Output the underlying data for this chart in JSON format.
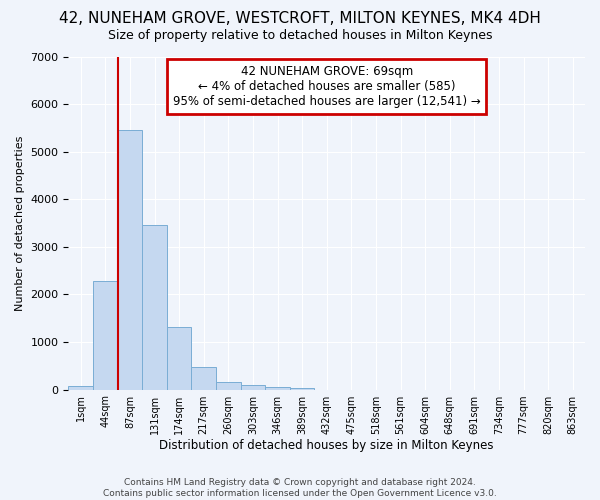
{
  "title": "42, NUNEHAM GROVE, WESTCROFT, MILTON KEYNES, MK4 4DH",
  "subtitle": "Size of property relative to detached houses in Milton Keynes",
  "xlabel": "Distribution of detached houses by size in Milton Keynes",
  "ylabel": "Number of detached properties",
  "footer_line1": "Contains HM Land Registry data © Crown copyright and database right 2024.",
  "footer_line2": "Contains public sector information licensed under the Open Government Licence v3.0.",
  "bar_labels": [
    "1sqm",
    "44sqm",
    "87sqm",
    "131sqm",
    "174sqm",
    "217sqm",
    "260sqm",
    "303sqm",
    "346sqm",
    "389sqm",
    "432sqm",
    "475sqm",
    "518sqm",
    "561sqm",
    "604sqm",
    "648sqm",
    "691sqm",
    "734sqm",
    "777sqm",
    "820sqm",
    "863sqm"
  ],
  "bar_values": [
    80,
    2280,
    5460,
    3450,
    1320,
    470,
    160,
    90,
    50,
    30,
    0,
    0,
    0,
    0,
    0,
    0,
    0,
    0,
    0,
    0,
    0
  ],
  "bar_color": "#c5d8f0",
  "bar_edgecolor": "#7aadd4",
  "bg_color": "#f0f4fb",
  "plot_bg_color": "#f0f4fb",
  "grid_color": "#ffffff",
  "annotation_line1": "42 NUNEHAM GROVE: 69sqm",
  "annotation_line2": "← 4% of detached houses are smaller (585)",
  "annotation_line3": "95% of semi-detached houses are larger (12,541) →",
  "annotation_box_facecolor": "#ffffff",
  "annotation_box_edgecolor": "#cc0000",
  "vline_color": "#cc0000",
  "vline_x": 2.0,
  "ylim": [
    0,
    7000
  ],
  "yticks": [
    0,
    1000,
    2000,
    3000,
    4000,
    5000,
    6000,
    7000
  ],
  "title_fontsize": 11,
  "subtitle_fontsize": 9
}
